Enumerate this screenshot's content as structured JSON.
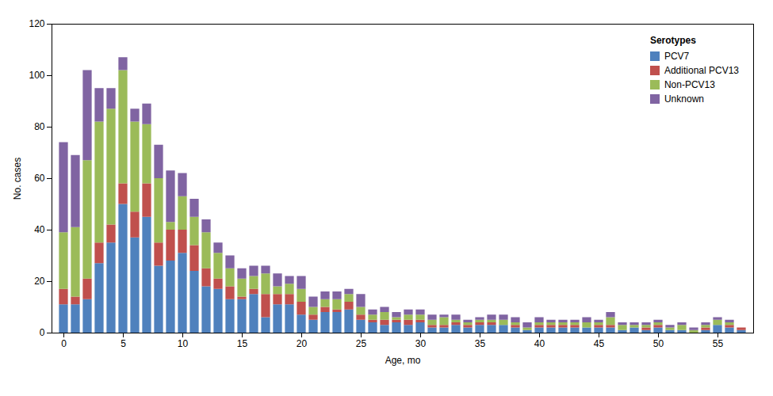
{
  "chart_data": {
    "type": "bar",
    "stacked": true,
    "xlabel": "Age, mo",
    "ylabel": "No. cases",
    "legend_title": "Serotypes",
    "legend": "upper right",
    "grid": false,
    "x": [
      0,
      1,
      2,
      3,
      4,
      5,
      6,
      7,
      8,
      9,
      10,
      11,
      12,
      13,
      14,
      15,
      16,
      17,
      18,
      19,
      20,
      21,
      22,
      23,
      24,
      25,
      26,
      27,
      28,
      29,
      30,
      31,
      32,
      33,
      34,
      35,
      36,
      37,
      38,
      39,
      40,
      41,
      42,
      43,
      44,
      45,
      46,
      47,
      48,
      49,
      50,
      51,
      52,
      53,
      54,
      55,
      56,
      57
    ],
    "series": [
      {
        "name": "PCV7",
        "color": "#4F81BD",
        "values": [
          11,
          11,
          13,
          27,
          35,
          50,
          37,
          45,
          26,
          28,
          31,
          24,
          18,
          17,
          13,
          13,
          15,
          6,
          11,
          11,
          7,
          5,
          8,
          8,
          9,
          5,
          4,
          3,
          4,
          3,
          4,
          2,
          2,
          3,
          2,
          3,
          3,
          3,
          2,
          1,
          2,
          2,
          2,
          2,
          2,
          2,
          2,
          1,
          2,
          1,
          2,
          1,
          1,
          0,
          1,
          3,
          2,
          1
        ]
      },
      {
        "name": "Additional PCV13",
        "color": "#C0504D",
        "values": [
          6,
          3,
          8,
          8,
          7,
          8,
          10,
          13,
          9,
          12,
          9,
          10,
          7,
          4,
          5,
          1,
          2,
          9,
          4,
          4,
          5,
          2,
          2,
          1,
          3,
          2,
          1,
          2,
          1,
          2,
          1,
          1,
          1,
          1,
          1,
          1,
          1,
          0,
          1,
          0,
          1,
          1,
          1,
          1,
          0,
          1,
          1,
          0,
          0,
          1,
          1,
          0,
          0,
          0,
          1,
          0,
          1,
          1
        ]
      },
      {
        "name": "Non-PCV13",
        "color": "#9BBB59",
        "values": [
          22,
          27,
          46,
          47,
          45,
          44,
          35,
          23,
          25,
          3,
          13,
          11,
          14,
          10,
          7,
          7,
          5,
          8,
          3,
          4,
          5,
          3,
          3,
          4,
          3,
          3,
          2,
          3,
          1,
          2,
          2,
          2,
          3,
          1,
          1,
          1,
          1,
          2,
          1,
          1,
          1,
          1,
          1,
          1,
          2,
          1,
          3,
          2,
          1,
          1,
          1,
          1,
          2,
          1,
          1,
          2,
          1,
          0
        ]
      },
      {
        "name": "Unknown",
        "color": "#8064A2",
        "values": [
          35,
          28,
          35,
          13,
          8,
          5,
          5,
          8,
          13,
          20,
          9,
          7,
          5,
          4,
          5,
          4,
          4,
          3,
          5,
          3,
          5,
          4,
          3,
          3,
          2,
          5,
          2,
          2,
          2,
          2,
          2,
          2,
          1,
          2,
          1,
          1,
          2,
          2,
          2,
          2,
          2,
          1,
          1,
          1,
          2,
          1,
          2,
          1,
          1,
          1,
          1,
          1,
          1,
          1,
          1,
          1,
          1,
          0
        ]
      }
    ],
    "xlim": [
      -1,
      58
    ],
    "xticks": [
      0,
      5,
      10,
      15,
      20,
      25,
      30,
      35,
      40,
      45,
      50,
      55
    ],
    "ylim": [
      0,
      120
    ],
    "yticks": [
      0,
      20,
      40,
      60,
      80,
      100,
      120
    ]
  }
}
